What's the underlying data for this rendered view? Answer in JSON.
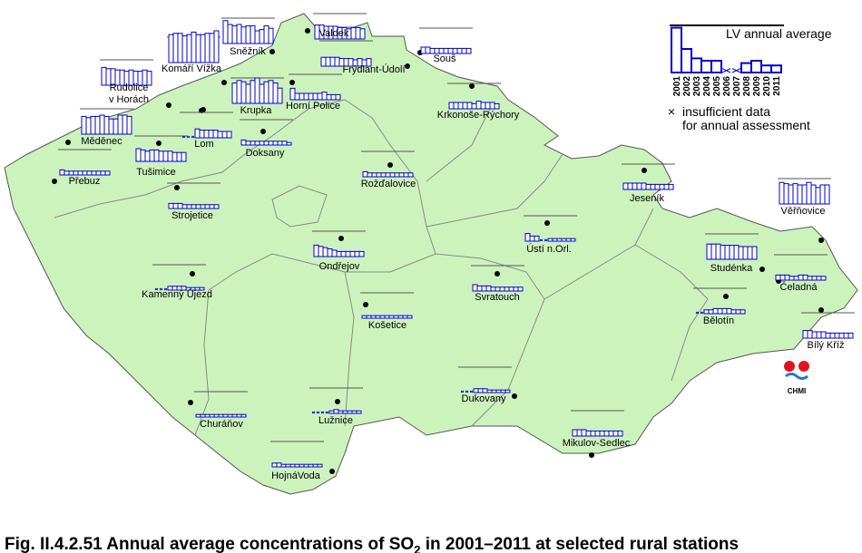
{
  "years": [
    "2001",
    "2002",
    "2003",
    "2004",
    "2005",
    "2006",
    "2007",
    "2008",
    "2009",
    "2010",
    "2011"
  ],
  "lv_value": 20,
  "legend": {
    "lv_label": "LV annual average",
    "example_values": [
      19,
      10,
      6,
      5,
      5,
      null,
      null,
      4,
      5,
      3,
      3
    ],
    "insufficient_line1": "insufficient data",
    "insufficient_line2": "for annual assessment"
  },
  "stations": [
    {
      "name": "Valdek",
      "values": [
        11,
        11,
        10,
        10,
        10,
        9,
        9,
        8,
        9,
        9,
        8
      ]
    },
    {
      "name": "Sněžník",
      "values": [
        18,
        15,
        14,
        15,
        13,
        14,
        14,
        10,
        11,
        14,
        12
      ]
    },
    {
      "name": "Komáří Vížka",
      "values": [
        22,
        23,
        23,
        21,
        22,
        24,
        22,
        22,
        23,
        23,
        25
      ]
    },
    {
      "name": [
        "Rudolice",
        "v Horách"
      ],
      "values": [
        14,
        13,
        13,
        12,
        12,
        11,
        12,
        11,
        11,
        12,
        11
      ]
    },
    {
      "name": "Krupka",
      "values": [
        16,
        18,
        17,
        15,
        18,
        20,
        15,
        17,
        18,
        16,
        12
      ]
    },
    {
      "name": "Horní Police",
      "values": [
        9,
        5,
        5,
        5,
        5,
        5,
        5,
        6,
        4,
        4,
        4
      ]
    },
    {
      "name": "Frýdlant-Údolí",
      "values": [
        7,
        7,
        7,
        7,
        6,
        6,
        6,
        5,
        6,
        5,
        6
      ]
    },
    {
      "name": "Souš",
      "values": [
        5,
        5,
        4,
        4,
        4,
        4,
        4,
        4,
        4,
        4,
        4
      ]
    },
    {
      "name": "Krkonoše-Rýchory",
      "values": [
        5,
        5,
        5,
        5,
        5,
        4,
        6,
        5,
        5,
        5,
        4
      ]
    },
    {
      "name": "Měděnec",
      "values": [
        14,
        13,
        14,
        14,
        15,
        14,
        12,
        12,
        15,
        15,
        14
      ]
    },
    {
      "name": "Tušimice",
      "values": [
        10,
        9,
        8,
        9,
        9,
        8,
        8,
        8,
        7,
        7,
        7
      ]
    },
    {
      "name": "Lom",
      "values": [
        null,
        null,
        null,
        7,
        6,
        6,
        6,
        6,
        5,
        5,
        5
      ]
    },
    {
      "name": "Doksany",
      "values": [
        4,
        3,
        3,
        3,
        3,
        3,
        3,
        3,
        3,
        3,
        2
      ]
    },
    {
      "name": "Přebuz",
      "values": [
        4,
        3,
        3,
        3,
        3,
        3,
        3,
        3,
        3,
        3,
        3
      ]
    },
    {
      "name": "Rožďalovice",
      "values": [
        4,
        3,
        3,
        3,
        3,
        3,
        3,
        3,
        3,
        3,
        3
      ]
    },
    {
      "name": "Strojetice",
      "values": [
        4,
        4,
        4,
        3,
        3,
        3,
        3,
        3,
        3,
        3,
        3
      ]
    },
    {
      "name": "Jeseník",
      "values": [
        5,
        5,
        5,
        5,
        5,
        4,
        4,
        4,
        4,
        4,
        4
      ]
    },
    {
      "name": "Věřňovice",
      "values": [
        17,
        16,
        15,
        16,
        15,
        15,
        17,
        15,
        13,
        15,
        15
      ]
    },
    {
      "name": "Ústí n.Orl.",
      "values": [
        6,
        4,
        4,
        null,
        null,
        2,
        2,
        2,
        2,
        2,
        2
      ]
    },
    {
      "name": "Ondřejov",
      "values": [
        9,
        8,
        7,
        6,
        5,
        4,
        4,
        4,
        4,
        4,
        4
      ]
    },
    {
      "name": "Studénka",
      "values": [
        12,
        12,
        12,
        11,
        11,
        11,
        11,
        10,
        10,
        10,
        10
      ]
    },
    {
      "name": "Čeladná",
      "values": [
        4,
        4,
        4,
        3,
        3,
        4,
        4,
        3,
        3,
        3,
        3
      ]
    },
    {
      "name": "Kamenný Újezd",
      "values": [
        null,
        null,
        null,
        3,
        3,
        3,
        3,
        2,
        2,
        2,
        2
      ]
    },
    {
      "name": "Svratouch",
      "values": [
        5,
        4,
        4,
        4,
        3,
        3,
        3,
        3,
        3,
        3,
        3
      ]
    },
    {
      "name": "Bělotín",
      "values": [
        null,
        null,
        3,
        3,
        4,
        4,
        4,
        4,
        3,
        3,
        3
      ]
    },
    {
      "name": "Košetice",
      "values": [
        2,
        2,
        2,
        2,
        2,
        2,
        2,
        2,
        2,
        2,
        2
      ]
    },
    {
      "name": "Bílý Kříž",
      "values": [
        6,
        6,
        5,
        5,
        5,
        4,
        4,
        4,
        4,
        4,
        4
      ]
    },
    {
      "name": "Churáňov",
      "values": [
        2,
        2,
        2,
        2,
        2,
        2,
        2,
        2,
        2,
        2,
        2
      ]
    },
    {
      "name": "Lužnice",
      "values": [
        null,
        null,
        null,
        null,
        2,
        3,
        2,
        2,
        2,
        2,
        2
      ]
    },
    {
      "name": "Dukovany",
      "values": [
        null,
        null,
        null,
        3,
        3,
        3,
        2,
        2,
        2,
        2,
        2
      ]
    },
    {
      "name": "Mikulov-Sedlec",
      "values": [
        5,
        5,
        5,
        4,
        4,
        4,
        4,
        4,
        4,
        4,
        4
      ]
    },
    {
      "name": "HojnáVoda",
      "values": [
        3,
        3,
        2,
        2,
        2,
        2,
        2,
        2,
        2,
        2,
        2
      ]
    }
  ],
  "logo": "CHMI",
  "caption": {
    "main": "Fig. II.4.2.51  Annual average concentrations of SO",
    "subscript": "2",
    "rest": " in 2001–2011 at selected rural stations"
  }
}
